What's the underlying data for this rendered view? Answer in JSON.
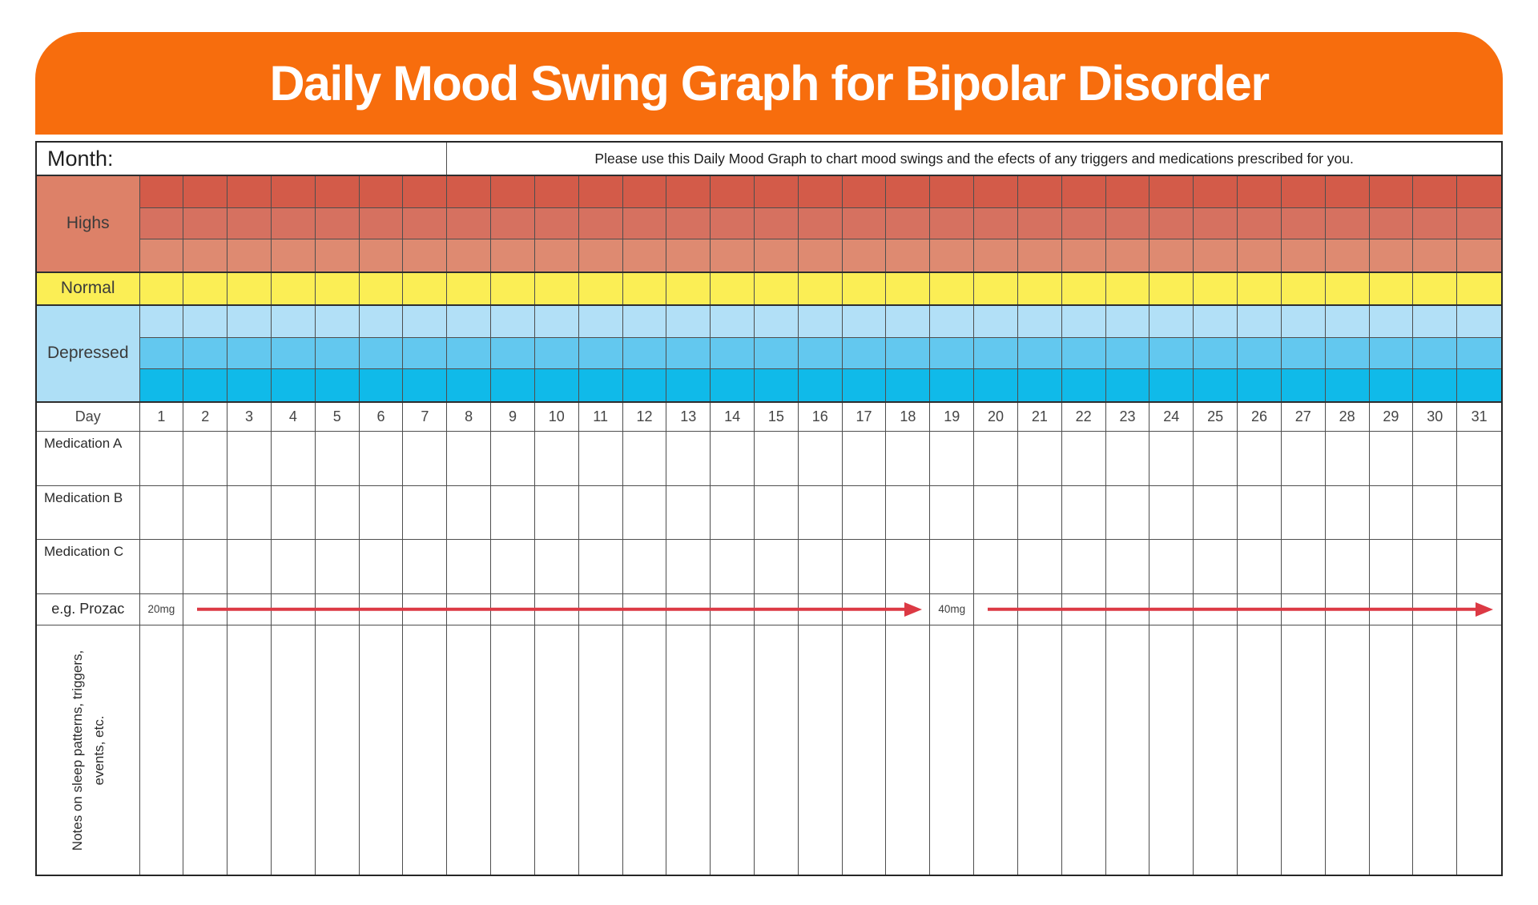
{
  "banner": {
    "title": "Daily Mood Swing Graph for Bipolar Disorder",
    "bg": "#f76d0d",
    "text_color": "#ffffff"
  },
  "month_row": {
    "label": "Month:",
    "instruction": "Please use this Daily Mood Graph to chart mood swings and the efects of any triggers and medications prescribed for you."
  },
  "mood_sections": [
    {
      "label": "Highs",
      "label_bg": "#dd8168",
      "rows": [
        "#d35b49",
        "#d67160",
        "#de8a71"
      ]
    },
    {
      "label": "Normal",
      "label_bg": "#fbee55",
      "rows": [
        "#fbee55"
      ]
    },
    {
      "label": "Depressed",
      "label_bg": "#aedff6",
      "rows": [
        "#b2e0f7",
        "#63c8ef",
        "#10bae9"
      ]
    }
  ],
  "day_row": {
    "label": "Day",
    "days": [
      "1",
      "2",
      "3",
      "4",
      "5",
      "6",
      "7",
      "8",
      "9",
      "10",
      "11",
      "12",
      "13",
      "14",
      "15",
      "16",
      "17",
      "18",
      "19",
      "20",
      "21",
      "22",
      "23",
      "24",
      "25",
      "26",
      "27",
      "28",
      "29",
      "30",
      "31"
    ]
  },
  "medication_rows": [
    "Medication A",
    "Medication B",
    "Medication C"
  ],
  "prozac_row": {
    "label": "e.g. Prozac",
    "annotations": [
      {
        "day": 1,
        "text": "20mg"
      },
      {
        "day": 19,
        "text": "40mg"
      }
    ],
    "arrows": [
      {
        "from_day": 2,
        "to_day": 18
      },
      {
        "from_day": 20,
        "to_day": 31
      }
    ],
    "arrow_color": "#dc3944"
  },
  "notes_row": {
    "label_line1": "Notes on sleep patterns, triggers,",
    "label_line2": "events, etc."
  }
}
